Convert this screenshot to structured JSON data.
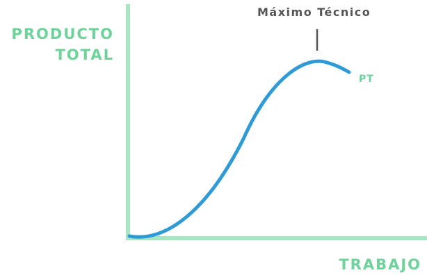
{
  "diagram": {
    "ylabel_lines": [
      "PRODUCTO",
      "TOTAL"
    ],
    "xlabel": "TRABAJO",
    "curve_label": "PT",
    "max_label": "Máximo Técnico"
  },
  "colors": {
    "axis": "#a8e6c3",
    "axis_text": "#6dd39a",
    "curve": "#2f9bd6",
    "annotation": "#555555"
  },
  "icons": []
}
